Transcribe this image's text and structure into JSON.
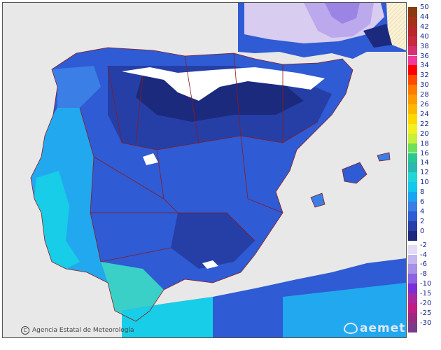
{
  "map": {
    "title": "",
    "credit_text": "Agencia Estatal de Meteorología",
    "copyright_symbol": "C",
    "logo_text": "aemet",
    "land_colors": {
      "sea": "#e8e8e8",
      "foreign_land_hatch": "#fbf2d6",
      "border_lines": "#8b1a1a",
      "value_0_2": "#1c2a7d",
      "value_2_4": "#263fa6",
      "value_4_6": "#2f5bd4",
      "value_6_8": "#3a7ee6",
      "value_8_10": "#22a8ef",
      "value_10_12": "#18cde7",
      "value_12_14": "#3ad0c8",
      "value_below_zero": "#d8ccf0",
      "value_minus_4": "#bca8ec",
      "value_minus_6": "#9c84e4"
    }
  },
  "legend": {
    "positive": [
      {
        "label": "50",
        "color": "#8b3a10"
      },
      {
        "label": "44",
        "color": "#a53218"
      },
      {
        "label": "42",
        "color": "#b8282a"
      },
      {
        "label": "40",
        "color": "#c82840"
      },
      {
        "label": "38",
        "color": "#d63070"
      },
      {
        "label": "36",
        "color": "#f03a9a"
      },
      {
        "label": "34",
        "color": "#ff0000"
      },
      {
        "label": "32",
        "color": "#ff4a00"
      },
      {
        "label": "30",
        "color": "#ff7a00"
      },
      {
        "label": "28",
        "color": "#ff9a00"
      },
      {
        "label": "26",
        "color": "#ffb800"
      },
      {
        "label": "24",
        "color": "#ffd800"
      },
      {
        "label": "22",
        "color": "#f2f020"
      },
      {
        "label": "20",
        "color": "#c8f03a"
      },
      {
        "label": "18",
        "color": "#6ee05a"
      },
      {
        "label": "16",
        "color": "#28c890"
      },
      {
        "label": "14",
        "color": "#2ab8b0"
      },
      {
        "label": "12",
        "color": "#20d6d6"
      },
      {
        "label": "10",
        "color": "#12c8ee"
      },
      {
        "label": "8",
        "color": "#18a6f0"
      },
      {
        "label": "6",
        "color": "#3a7ee6"
      },
      {
        "label": "4",
        "color": "#2f5bd4"
      },
      {
        "label": "2",
        "color": "#263fa6"
      },
      {
        "label": "0",
        "color": "#1c2a7d"
      }
    ],
    "negative": [
      {
        "label": "-2",
        "color": "#e4dcf6"
      },
      {
        "label": "-4",
        "color": "#c6b6f0"
      },
      {
        "label": "-6",
        "color": "#a890e8"
      },
      {
        "label": "-8",
        "color": "#8c64e0"
      },
      {
        "label": "-10",
        "color": "#7a2ed8"
      },
      {
        "label": "-15",
        "color": "#a82aa0"
      },
      {
        "label": "-20",
        "color": "#c01e84"
      },
      {
        "label": "-25",
        "color": "#9a2a80"
      },
      {
        "label": "-30",
        "color": "#7a3a8a"
      }
    ]
  }
}
